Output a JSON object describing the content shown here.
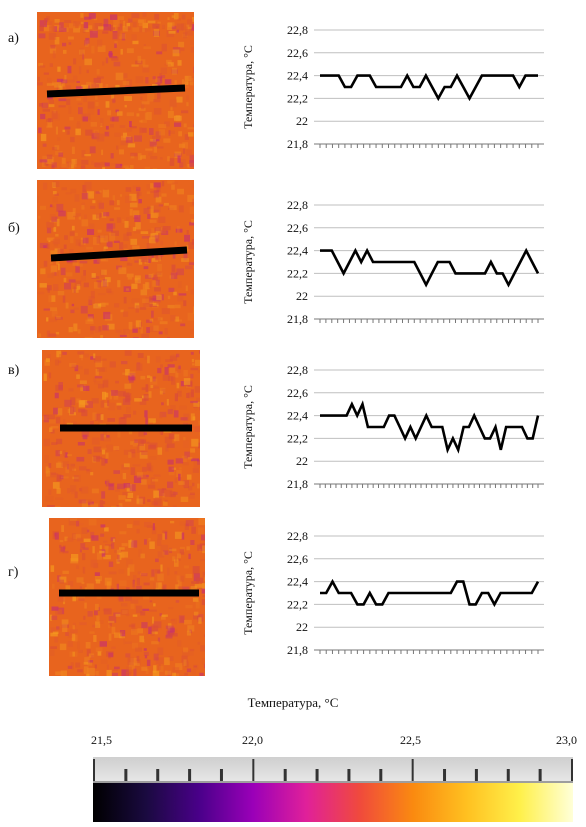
{
  "panels": [
    {
      "label": "а)",
      "ylabel": "Температура, °C"
    },
    {
      "label": "б)",
      "ylabel": "Температура, °C"
    },
    {
      "label": "в)",
      "ylabel": "Температура, °C"
    },
    {
      "label": "г)",
      "ylabel": "Температура, °C"
    }
  ],
  "colorbar": {
    "title": "Температура, °C",
    "tick_labels": [
      "21,5",
      "22,0",
      "22,5",
      "23,0"
    ],
    "gradient": [
      "#000000",
      "#1a0a40",
      "#4a008a",
      "#9a00b8",
      "#e0209a",
      "#f04a3c",
      "#fa8a10",
      "#ffc020",
      "#fff04a",
      "#ffffd8"
    ]
  },
  "colors": {
    "thermo_base": "#e8641e",
    "thermo_hot": "#f59a1e",
    "thermo_cold": "#c8306e",
    "line": "#000000",
    "grid": "#bfbfbf"
  },
  "chart_data": [
    {
      "type": "line",
      "title": "",
      "xlabel": "",
      "ylabel": "Температура, °C",
      "yticks": [
        "21,8",
        "22",
        "22,2",
        "22,4",
        "22,6",
        "22,8"
      ],
      "ylim": [
        21.8,
        22.8
      ],
      "grid": true,
      "values": [
        22.4,
        22.4,
        22.4,
        22.4,
        22.3,
        22.3,
        22.4,
        22.4,
        22.4,
        22.3,
        22.3,
        22.3,
        22.3,
        22.3,
        22.4,
        22.3,
        22.3,
        22.4,
        22.3,
        22.2,
        22.3,
        22.3,
        22.4,
        22.3,
        22.2,
        22.3,
        22.4,
        22.4,
        22.4,
        22.4,
        22.4,
        22.4,
        22.3,
        22.4,
        22.4,
        22.4
      ]
    },
    {
      "type": "line",
      "title": "",
      "xlabel": "",
      "ylabel": "Температура, °C",
      "yticks": [
        "21,8",
        "22",
        "22,2",
        "22,4",
        "22,6",
        "22,8"
      ],
      "ylim": [
        21.8,
        22.8
      ],
      "grid": true,
      "values": [
        22.4,
        22.4,
        22.4,
        22.3,
        22.2,
        22.3,
        22.4,
        22.3,
        22.4,
        22.3,
        22.3,
        22.3,
        22.3,
        22.3,
        22.3,
        22.3,
        22.3,
        22.2,
        22.1,
        22.2,
        22.3,
        22.3,
        22.3,
        22.2,
        22.2,
        22.2,
        22.2,
        22.2,
        22.2,
        22.3,
        22.2,
        22.2,
        22.1,
        22.2,
        22.3,
        22.4,
        22.3,
        22.2
      ]
    },
    {
      "type": "line",
      "title": "",
      "xlabel": "",
      "ylabel": "Температура, °C",
      "yticks": [
        "21,8",
        "22",
        "22,2",
        "22,4",
        "22,6",
        "22,8"
      ],
      "ylim": [
        21.8,
        22.8
      ],
      "grid": true,
      "values": [
        22.4,
        22.4,
        22.4,
        22.4,
        22.4,
        22.4,
        22.5,
        22.4,
        22.5,
        22.3,
        22.3,
        22.3,
        22.3,
        22.4,
        22.4,
        22.3,
        22.2,
        22.3,
        22.2,
        22.3,
        22.4,
        22.3,
        22.3,
        22.3,
        22.1,
        22.2,
        22.1,
        22.3,
        22.3,
        22.4,
        22.3,
        22.2,
        22.2,
        22.3,
        22.1,
        22.3,
        22.3,
        22.3,
        22.3,
        22.2,
        22.2,
        22.4
      ]
    },
    {
      "type": "line",
      "title": "",
      "xlabel": "",
      "ylabel": "Температура, °C",
      "yticks": [
        "21,8",
        "22",
        "22,2",
        "22,4",
        "22,6",
        "22,8"
      ],
      "ylim": [
        21.8,
        22.8
      ],
      "grid": true,
      "values": [
        22.3,
        22.3,
        22.4,
        22.3,
        22.3,
        22.3,
        22.2,
        22.2,
        22.3,
        22.2,
        22.2,
        22.3,
        22.3,
        22.3,
        22.3,
        22.3,
        22.3,
        22.3,
        22.3,
        22.3,
        22.3,
        22.3,
        22.4,
        22.4,
        22.2,
        22.2,
        22.3,
        22.3,
        22.2,
        22.3,
        22.3,
        22.3,
        22.3,
        22.3,
        22.3,
        22.4
      ]
    }
  ]
}
